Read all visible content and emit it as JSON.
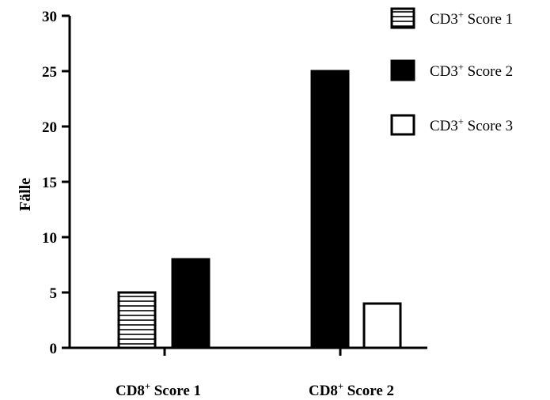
{
  "chart_data": {
    "type": "bar",
    "title": "",
    "xlabel": "",
    "ylabel": "Fälle",
    "ylim": [
      0,
      30
    ],
    "yticks": [
      0,
      5,
      10,
      15,
      20,
      25,
      30
    ],
    "grid": false,
    "legend_position": "top-right",
    "categories": [
      {
        "base": "CD8",
        "sup": "+",
        "rest": " Score 1"
      },
      {
        "base": "CD8",
        "sup": "+",
        "rest": " Score 2"
      }
    ],
    "series": [
      {
        "name": {
          "base": "CD3",
          "sup": "+",
          "rest": " Score 1"
        },
        "pattern": "hatched",
        "values": [
          5,
          null
        ]
      },
      {
        "name": {
          "base": "CD3",
          "sup": "+",
          "rest": " Score 2"
        },
        "pattern": "solid-black",
        "values": [
          8,
          25
        ]
      },
      {
        "name": {
          "base": "CD3",
          "sup": "+",
          "rest": " Score 3"
        },
        "pattern": "empty",
        "values": [
          null,
          4
        ]
      }
    ]
  }
}
